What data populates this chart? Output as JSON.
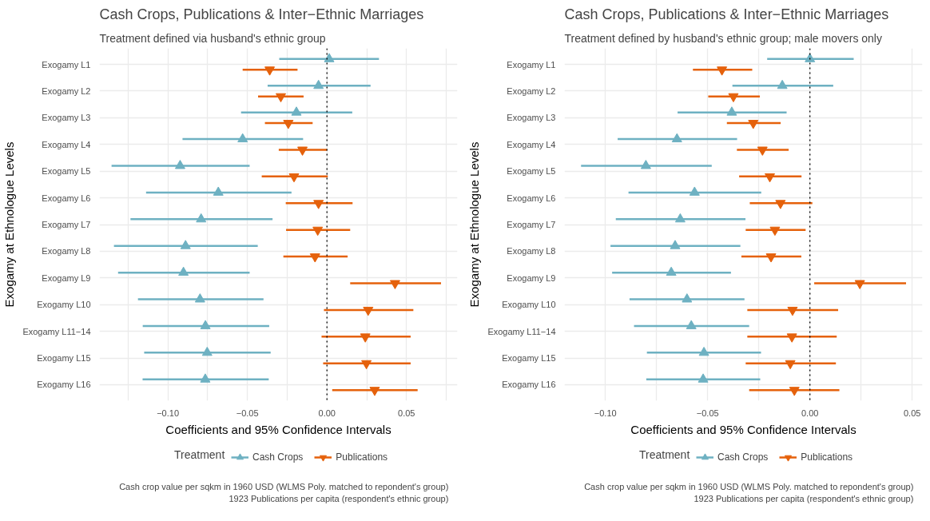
{
  "chart_data": [
    {
      "type": "scatter",
      "orientation": "horizontal",
      "title": "Cash Crops, Publications & Inter−Ethnic Marriages",
      "subtitle": "Treatment defined via husband's ethnic group",
      "xlabel": "Coefficients and 95% Confidence Intervals",
      "ylabel": "Exogamy at Ethnologue Levels",
      "legend_title": "Treatment",
      "legend": "bottom",
      "grid": true,
      "categories": [
        "Exogamy L1",
        "Exogamy L2",
        "Exogamy L3",
        "Exogamy L4",
        "Exogamy L5",
        "Exogamy L6",
        "Exogamy L7",
        "Exogamy L8",
        "Exogamy L9",
        "Exogamy L10",
        "Exogamy L11−14",
        "Exogamy L15",
        "Exogamy L16"
      ],
      "xlim": [
        -0.143,
        0.082
      ],
      "xticks": [
        {
          "value": -0.125,
          "label": null
        },
        {
          "value": -0.1,
          "label": "−0.10"
        },
        {
          "value": -0.075,
          "label": null
        },
        {
          "value": -0.05,
          "label": "−0.05"
        },
        {
          "value": -0.025,
          "label": null
        },
        {
          "value": 0,
          "label": "0.00"
        },
        {
          "value": 0.025,
          "label": null
        },
        {
          "value": 0.05,
          "label": "0.05"
        },
        {
          "value": 0.075,
          "label": null
        }
      ],
      "series": [
        {
          "name": "Cash Crops",
          "color": "#6eb1c2",
          "marker": "triangle",
          "values": [
            0.0014,
            -0.0053,
            -0.0192,
            -0.053,
            -0.0923,
            -0.0683,
            -0.0791,
            -0.0889,
            -0.0902,
            -0.0798,
            -0.0764,
            -0.0753,
            -0.0765
          ],
          "errors": [
            [
              -0.03,
              0.0327
            ],
            [
              -0.0373,
              0.0274
            ],
            [
              -0.054,
              0.0159
            ],
            [
              -0.0908,
              -0.015
            ],
            [
              -0.1354,
              -0.0486
            ],
            [
              -0.1137,
              -0.0223
            ],
            [
              -0.1235,
              -0.0342
            ],
            [
              -0.1339,
              -0.0435
            ],
            [
              -0.1313,
              -0.0486
            ],
            [
              -0.1188,
              -0.0399
            ],
            [
              -0.1158,
              -0.0363
            ],
            [
              -0.1149,
              -0.0354
            ],
            [
              -0.1159,
              -0.0366
            ]
          ]
        },
        {
          "name": "Publications",
          "color": "#e5610b",
          "marker": "triangle-down",
          "values": [
            -0.036,
            -0.029,
            -0.0243,
            -0.0154,
            -0.0207,
            -0.0053,
            -0.0058,
            -0.0075,
            0.0428,
            0.0259,
            0.0241,
            0.0248,
            0.03
          ],
          "errors": [
            [
              -0.053,
              -0.0185
            ],
            [
              -0.0433,
              -0.0147
            ],
            [
              -0.039,
              -0.009
            ],
            [
              -0.0303,
              0.0
            ],
            [
              -0.041,
              0.0005
            ],
            [
              -0.0259,
              0.0161
            ],
            [
              -0.0257,
              0.0146
            ],
            [
              -0.0274,
              0.013
            ],
            [
              0.0146,
              0.0717
            ],
            [
              -0.0019,
              0.0543
            ],
            [
              -0.0034,
              0.0526
            ],
            [
              -0.0024,
              0.0526
            ],
            [
              0.0033,
              0.057
            ]
          ]
        }
      ],
      "ref_lines": [
        {
          "axis": "x",
          "value": 0,
          "color": "#000000",
          "line_style": "dotted"
        }
      ],
      "annotations": [
        "Cash crop value per sqkm in 1960 USD (WLMS Poly. matched to repondent's group)",
        "1923 Publications per capita (respondent's ethnic group)"
      ]
    },
    {
      "type": "scatter",
      "orientation": "horizontal",
      "title": "Cash Crops, Publications & Inter−Ethnic Marriages",
      "subtitle": "Treatment defined by husband's ethnic group; male movers only",
      "xlabel": "Coefficients and 95% Confidence Intervals",
      "ylabel": "Exogamy at Ethnologue Levels",
      "legend_title": "Treatment",
      "legend": "bottom",
      "grid": true,
      "categories": [
        "Exogamy L1",
        "Exogamy L2",
        "Exogamy L3",
        "Exogamy L4",
        "Exogamy L5",
        "Exogamy L6",
        "Exogamy L7",
        "Exogamy L8",
        "Exogamy L9",
        "Exogamy L10",
        "Exogamy L11−14",
        "Exogamy L15",
        "Exogamy L16"
      ],
      "xlim": [
        -0.12,
        0.055
      ],
      "xticks": [
        {
          "value": -0.1,
          "label": "−0.10"
        },
        {
          "value": -0.075,
          "label": null
        },
        {
          "value": -0.05,
          "label": "−0.05"
        },
        {
          "value": -0.025,
          "label": null
        },
        {
          "value": 0,
          "label": "0.00"
        },
        {
          "value": 0.025,
          "label": null
        },
        {
          "value": 0.05,
          "label": "0.05"
        }
      ],
      "series": [
        {
          "name": "Cash Crops",
          "color": "#6eb1c2",
          "marker": "triangle",
          "values": [
            0.0,
            -0.0135,
            -0.0382,
            -0.065,
            -0.0802,
            -0.0564,
            -0.0634,
            -0.0659,
            -0.0678,
            -0.0601,
            -0.058,
            -0.0518,
            -0.0522
          ],
          "errors": [
            [
              -0.0209,
              0.0214
            ],
            [
              -0.0379,
              0.0114
            ],
            [
              -0.0647,
              -0.0114
            ],
            [
              -0.094,
              -0.0356
            ],
            [
              -0.1119,
              -0.048
            ],
            [
              -0.0887,
              -0.0238
            ],
            [
              -0.0949,
              -0.0315
            ],
            [
              -0.0975,
              -0.034
            ],
            [
              -0.0967,
              -0.0386
            ],
            [
              -0.0882,
              -0.032
            ],
            [
              -0.086,
              -0.0297
            ],
            [
              -0.0797,
              -0.0239
            ],
            [
              -0.08,
              -0.0243
            ]
          ]
        },
        {
          "name": "Publications",
          "color": "#e5610b",
          "marker": "triangle-down",
          "values": [
            -0.043,
            -0.0374,
            -0.0277,
            -0.0232,
            -0.0196,
            -0.0144,
            -0.0171,
            -0.019,
            0.0244,
            -0.0085,
            -0.0088,
            -0.0096,
            -0.0076
          ],
          "errors": [
            [
              -0.0572,
              -0.0282
            ],
            [
              -0.0497,
              -0.0245
            ],
            [
              -0.0406,
              -0.0143
            ],
            [
              -0.0357,
              -0.0104
            ],
            [
              -0.0346,
              -0.0041
            ],
            [
              -0.0294,
              0.0012
            ],
            [
              -0.0314,
              -0.0021
            ],
            [
              -0.0335,
              -0.0042
            ],
            [
              0.0021,
              0.047
            ],
            [
              -0.0306,
              0.0138
            ],
            [
              -0.0306,
              0.0131
            ],
            [
              -0.0314,
              0.0127
            ],
            [
              -0.0297,
              0.0144
            ]
          ]
        }
      ],
      "ref_lines": [
        {
          "axis": "x",
          "value": 0,
          "color": "#000000",
          "line_style": "dotted"
        }
      ],
      "annotations": [
        "Cash crop value per sqkm in 1960 USD (WLMS Poly. matched to repondent's group)",
        "1923 Publications per capita (respondent's ethnic group)"
      ]
    }
  ]
}
